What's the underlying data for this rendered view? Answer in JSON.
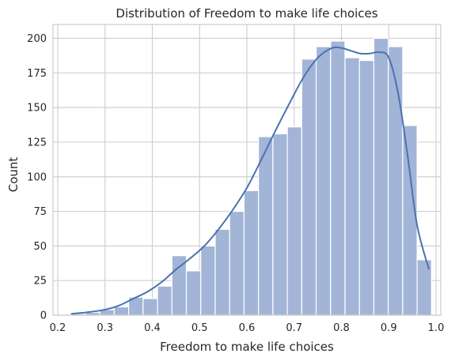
{
  "chart_data": {
    "type": "histogram",
    "title": "Distribution of Freedom to make life choices",
    "xlabel": "Freedom to make life choices",
    "ylabel": "Count",
    "xlim": [
      0.19,
      1.01
    ],
    "ylim": [
      0,
      210
    ],
    "grid": true,
    "x_ticks": [
      0.2,
      0.3,
      0.4,
      0.5,
      0.6,
      0.7,
      0.8,
      0.9,
      1.0
    ],
    "x_tick_labels": [
      "0.2",
      "0.3",
      "0.4",
      "0.5",
      "0.6",
      "0.7",
      "0.8",
      "0.9",
      "1.0"
    ],
    "y_ticks": [
      0,
      25,
      50,
      75,
      100,
      125,
      150,
      175,
      200
    ],
    "y_tick_labels": [
      "0",
      "25",
      "50",
      "75",
      "100",
      "125",
      "150",
      "175",
      "200"
    ],
    "bins": {
      "start": 0.228,
      "width": 0.0305,
      "counts": [
        1,
        2,
        4,
        6,
        13,
        12,
        21,
        43,
        32,
        50,
        62,
        75,
        90,
        129,
        131,
        136,
        185,
        194,
        198,
        186,
        184,
        200,
        194,
        137,
        40
      ]
    },
    "kde": {
      "x": [
        0.228,
        0.26,
        0.3,
        0.33,
        0.36,
        0.39,
        0.42,
        0.45,
        0.48,
        0.51,
        0.54,
        0.57,
        0.6,
        0.63,
        0.66,
        0.69,
        0.72,
        0.75,
        0.78,
        0.8,
        0.82,
        0.84,
        0.86,
        0.88,
        0.9,
        0.92,
        0.94,
        0.96,
        0.985
      ],
      "y": [
        1,
        2,
        4,
        7,
        12,
        17,
        24,
        33,
        41,
        50,
        62,
        76,
        92,
        112,
        133,
        153,
        172,
        186,
        193,
        193,
        191,
        189,
        189,
        190,
        186,
        160,
        115,
        65,
        33
      ]
    },
    "bar_color": "#a2b5d7",
    "line_color": "#4c72b0"
  }
}
